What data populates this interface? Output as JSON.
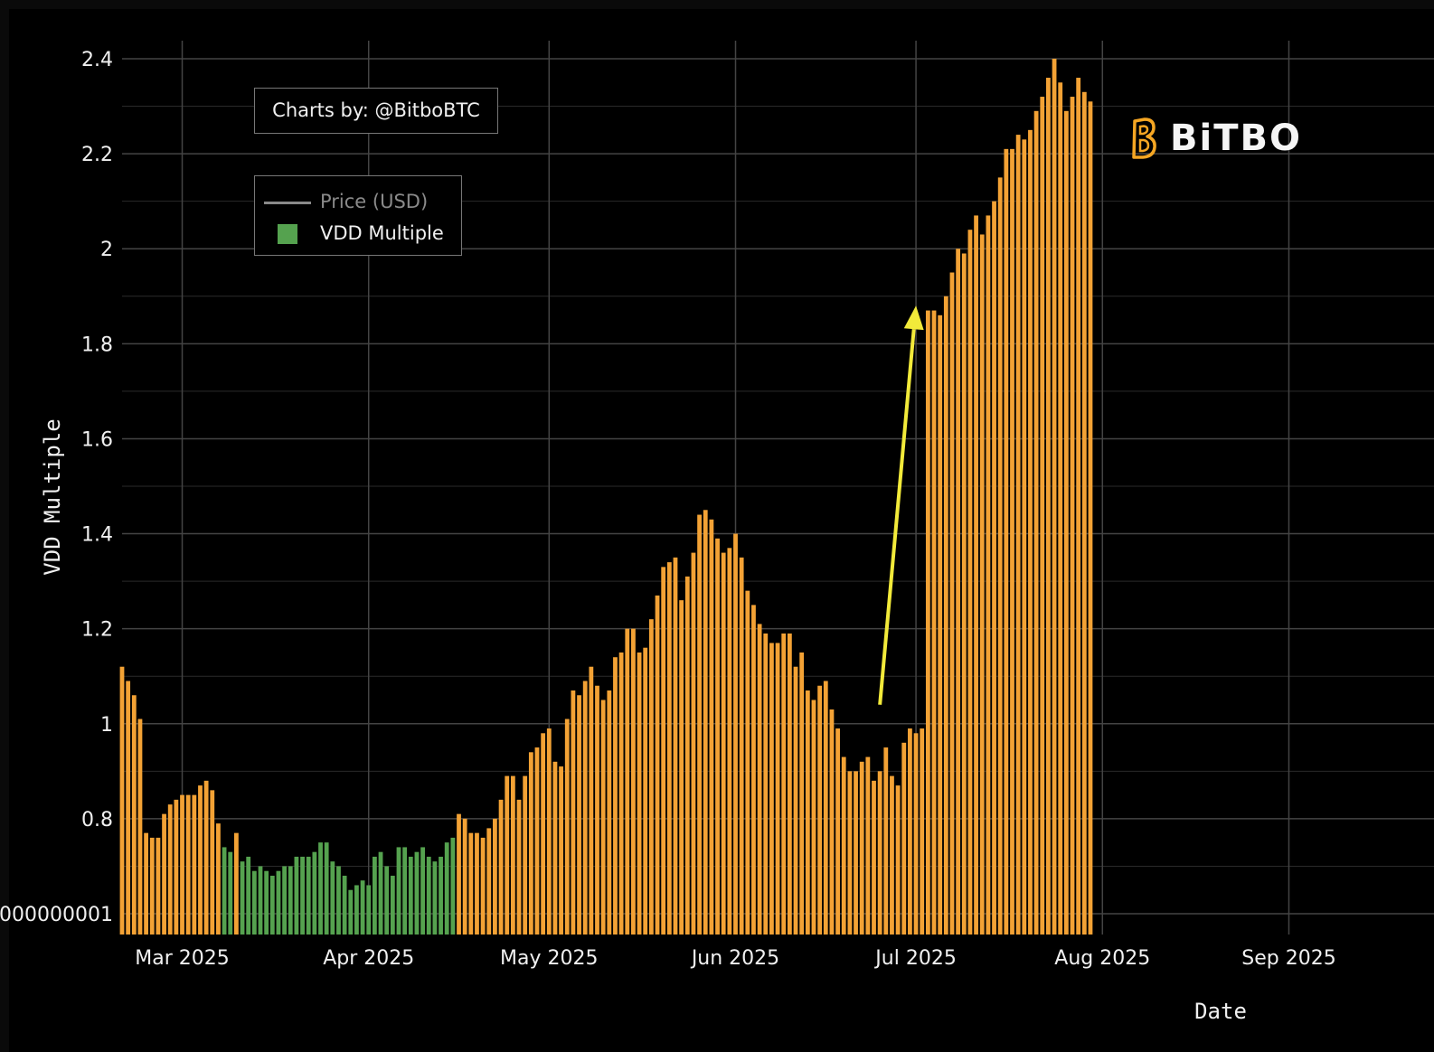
{
  "credit": "Charts by: @BitboBTC",
  "legend": {
    "price_label": "Price (USD)",
    "vdd_label": "VDD Multiple"
  },
  "logo": {
    "text": "BiTBO",
    "icon": "bitbo-b-icon",
    "icon_color": "#f5a623"
  },
  "colors": {
    "above_one": "#f3a235",
    "below_one": "#55a24f",
    "annotation_arrow": "#f2ea3a",
    "gridline": "#444444",
    "background": "#000000"
  },
  "chart_data": {
    "type": "bar",
    "title": "",
    "xlabel": "Date",
    "ylabel": "VDD Multiple",
    "ylim": [
      0.6,
      2.4
    ],
    "x_range": [
      "2025-02-19",
      "2025-09-17"
    ],
    "yticks": [
      0.8,
      1,
      1.2,
      1.4,
      1.6,
      1.8,
      2,
      2.2,
      2.4
    ],
    "ytick_labels": [
      "0.8",
      "1",
      "1.2",
      "1.4",
      "1.6",
      "1.8",
      "2",
      "2.2",
      "2.4"
    ],
    "lower_tick_label": "000000001",
    "lower_tick_value": 0.6,
    "xticks": [
      {
        "date": "2025-03-01",
        "label": "Mar 2025"
      },
      {
        "date": "2025-04-01",
        "label": "Apr 2025"
      },
      {
        "date": "2025-05-01",
        "label": "May 2025"
      },
      {
        "date": "2025-06-01",
        "label": "Jun 2025"
      },
      {
        "date": "2025-07-01",
        "label": "Jul 2025"
      },
      {
        "date": "2025-08-01",
        "label": "Aug 2025"
      },
      {
        "date": "2025-09-01",
        "label": "Sep 2025"
      }
    ],
    "start_date": "2025-02-19",
    "values": [
      1.12,
      1.09,
      1.06,
      1.01,
      0.77,
      0.76,
      0.76,
      0.81,
      0.83,
      0.84,
      0.85,
      0.85,
      0.85,
      0.87,
      0.88,
      0.86,
      0.79,
      0.74,
      0.73,
      0.77,
      0.71,
      0.72,
      0.69,
      0.7,
      0.69,
      0.68,
      0.69,
      0.7,
      0.7,
      0.72,
      0.72,
      0.72,
      0.73,
      0.75,
      0.75,
      0.71,
      0.7,
      0.68,
      0.65,
      0.66,
      0.67,
      0.66,
      0.72,
      0.73,
      0.7,
      0.68,
      0.74,
      0.74,
      0.72,
      0.73,
      0.74,
      0.72,
      0.71,
      0.72,
      0.75,
      0.76,
      0.81,
      0.8,
      0.77,
      0.77,
      0.76,
      0.78,
      0.8,
      0.84,
      0.89,
      0.89,
      0.84,
      0.89,
      0.94,
      0.95,
      0.98,
      0.99,
      0.92,
      0.91,
      1.01,
      1.07,
      1.06,
      1.09,
      1.12,
      1.08,
      1.05,
      1.07,
      1.14,
      1.15,
      1.2,
      1.2,
      1.15,
      1.16,
      1.22,
      1.27,
      1.33,
      1.34,
      1.35,
      1.26,
      1.31,
      1.36,
      1.44,
      1.45,
      1.43,
      1.39,
      1.36,
      1.37,
      1.4,
      1.35,
      1.28,
      1.25,
      1.21,
      1.19,
      1.17,
      1.17,
      1.19,
      1.19,
      1.12,
      1.15,
      1.07,
      1.05,
      1.08,
      1.09,
      1.03,
      0.99,
      0.93,
      0.9,
      0.9,
      0.92,
      0.93,
      0.88,
      0.9,
      0.95,
      0.89,
      0.87,
      0.96,
      0.99,
      0.98,
      0.99,
      1.87,
      1.87,
      1.86,
      1.9,
      1.95,
      2.0,
      1.99,
      2.04,
      2.07,
      2.03,
      2.07,
      2.1,
      2.15,
      2.21,
      2.21,
      2.24,
      2.23,
      2.25,
      2.29,
      2.32,
      2.36,
      2.4,
      2.35,
      2.29,
      2.32,
      2.36,
      2.33,
      2.31
    ],
    "annotation": {
      "type": "arrow",
      "from": [
        "2025-06-25",
        1.04
      ],
      "to": [
        "2025-07-01",
        1.88
      ]
    },
    "grid": true,
    "legend_position": "top-left"
  }
}
